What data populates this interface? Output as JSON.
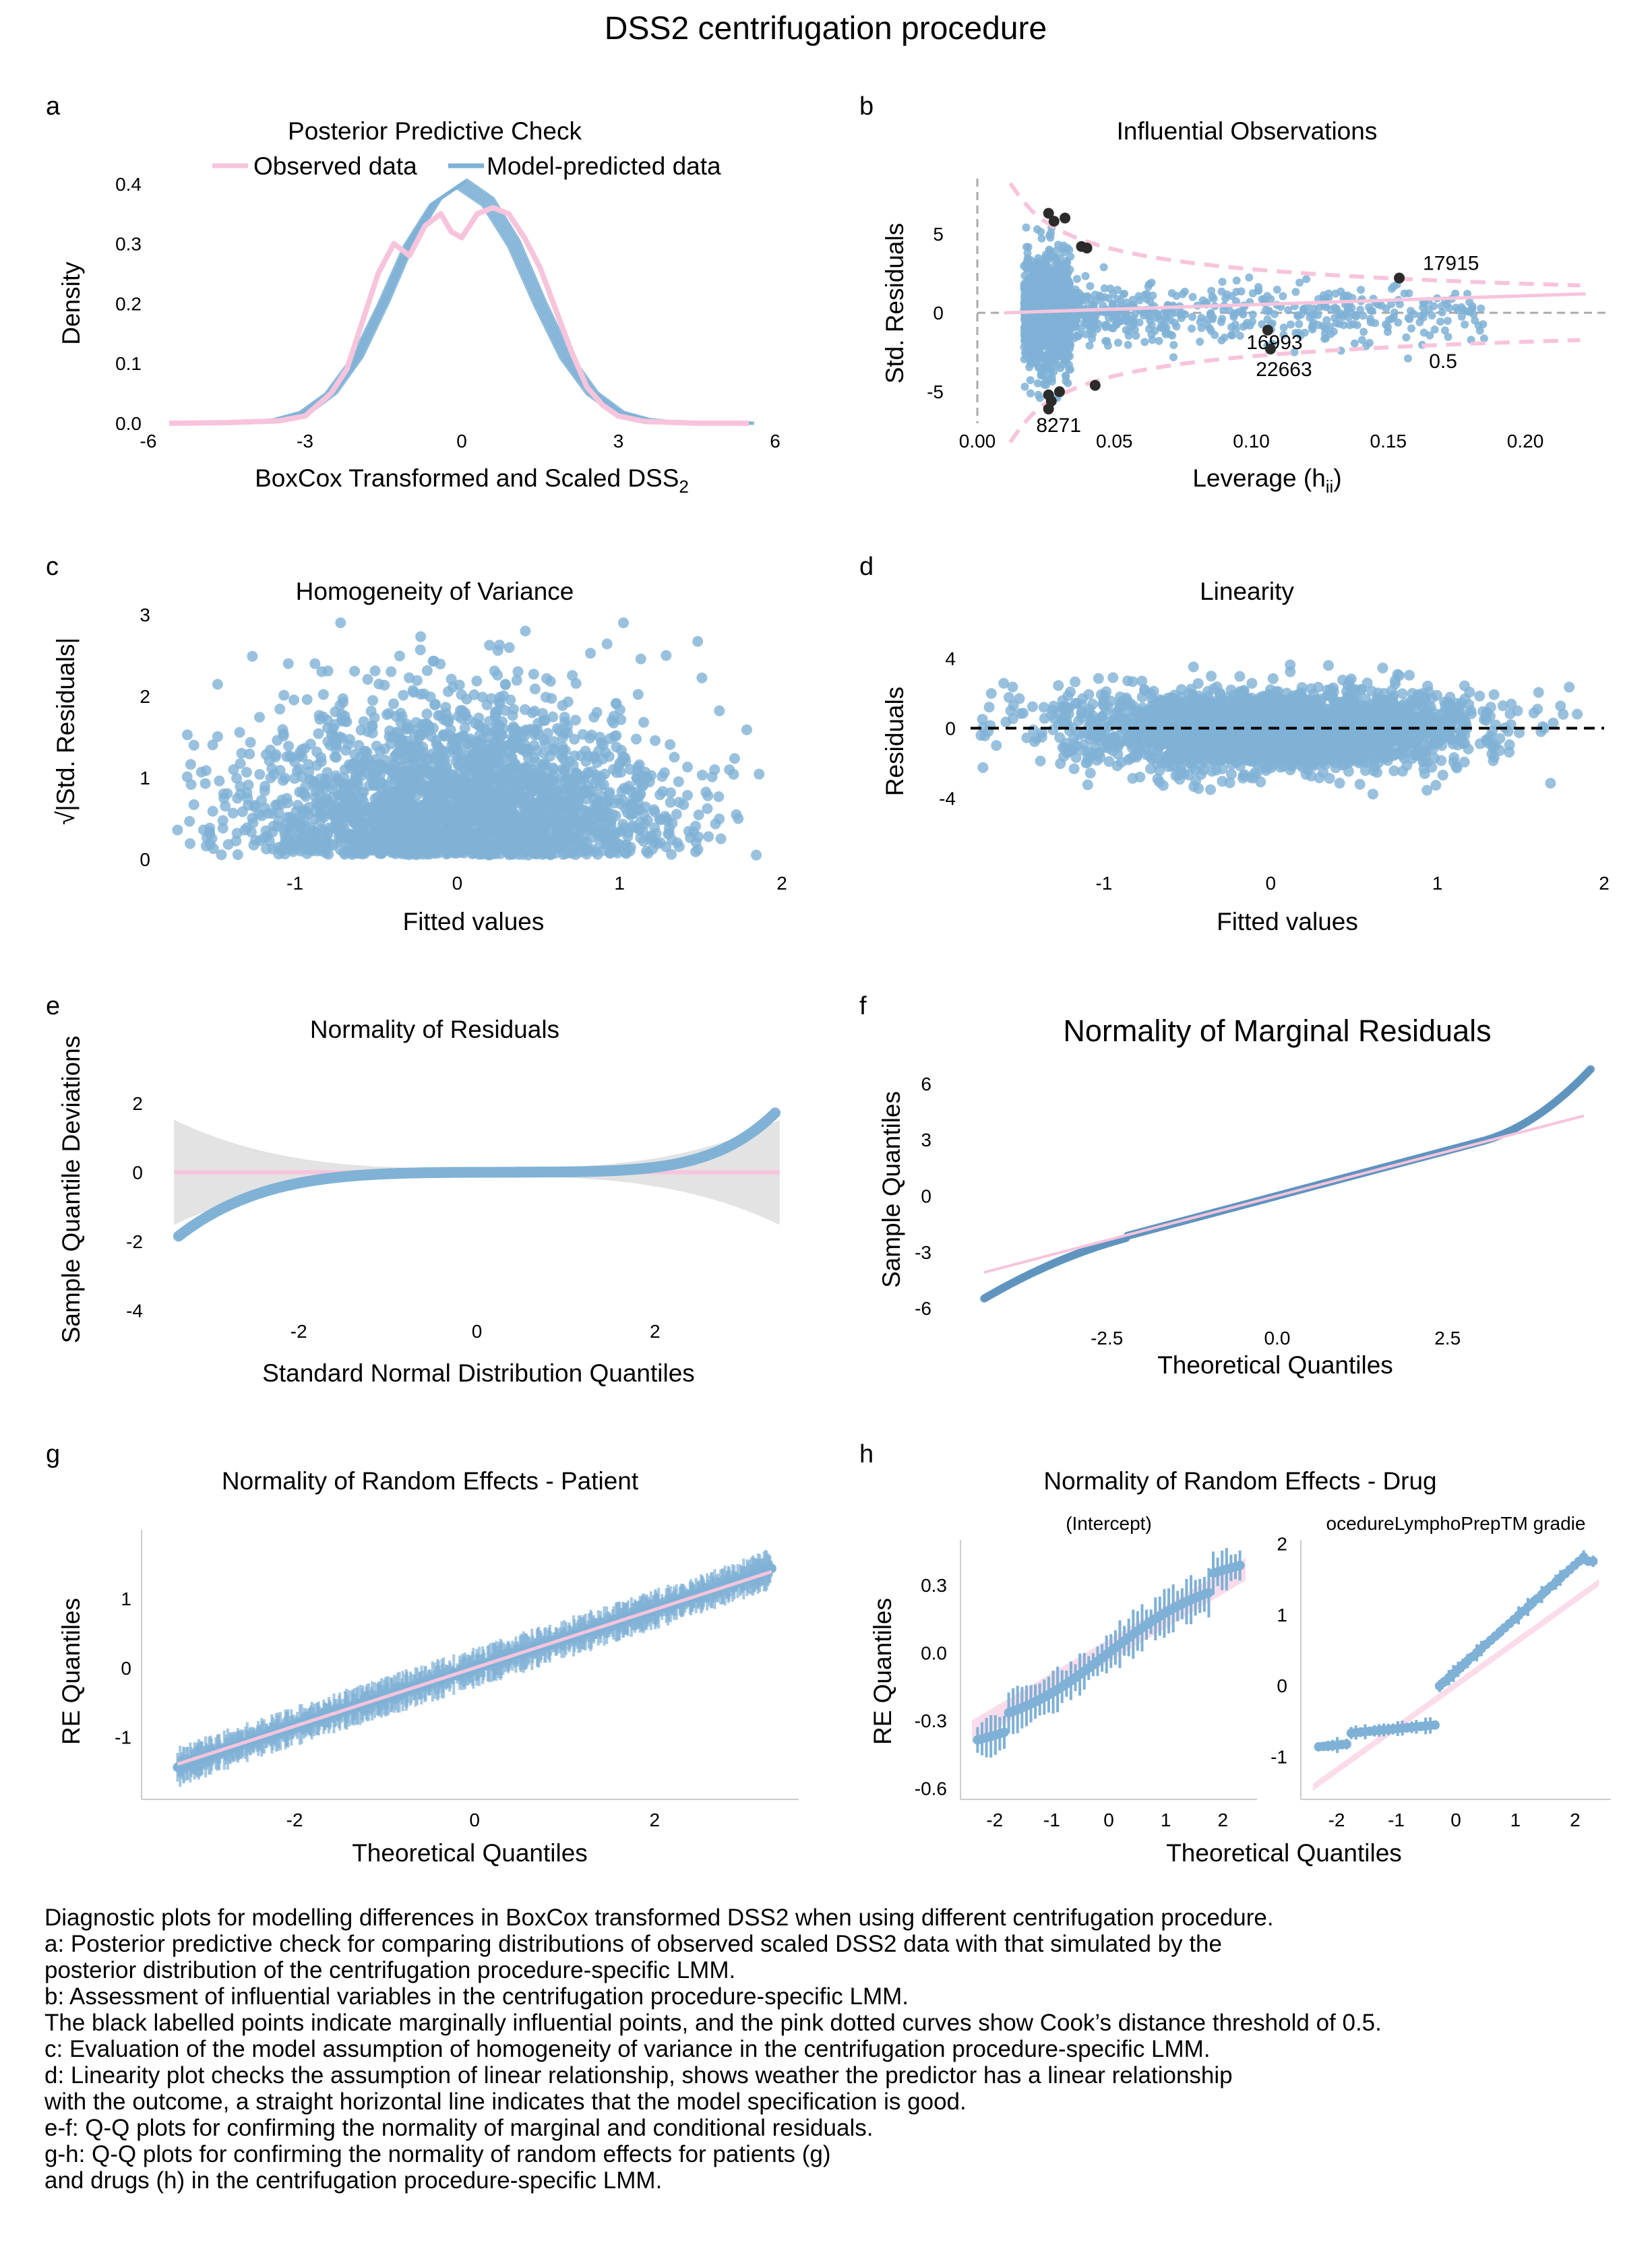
{
  "figure": {
    "title": "DSS2 centrifugation procedure"
  },
  "colors": {
    "blue": "#7fb1d6",
    "blue_dark": "#5f93bf",
    "pink": "#f7c4dc",
    "grey_band": "#e3e3e3",
    "influential": "#2b2b2b"
  },
  "chart_data": [
    {
      "panel": "a",
      "type": "line",
      "title": "Posterior Predictive Check",
      "xlabel": "BoxCox Transformed and Scaled DSS",
      "xlabel_sub": "2",
      "ylabel": "Density",
      "xlim": [
        -6,
        6
      ],
      "ylim": [
        0,
        0.42
      ],
      "xticks": [
        "-6",
        "-3",
        "0",
        "3",
        "6"
      ],
      "yticks": [
        "0.0",
        "0.1",
        "0.2",
        "0.3",
        "0.4"
      ],
      "legend": {
        "position": "top",
        "entries": [
          "Observed data",
          "Model-predicted data"
        ]
      },
      "series": [
        {
          "name": "Observed data",
          "x": [
            -5.6,
            -4.5,
            -3.5,
            -3.0,
            -2.5,
            -2.2,
            -1.9,
            -1.6,
            -1.3,
            -1.0,
            -0.7,
            -0.4,
            -0.2,
            0.0,
            0.3,
            0.6,
            0.9,
            1.2,
            1.5,
            1.8,
            2.1,
            2.4,
            2.7,
            3.0,
            3.5,
            4.5,
            5.5
          ],
          "y": [
            0.0,
            0.001,
            0.004,
            0.012,
            0.05,
            0.09,
            0.17,
            0.25,
            0.3,
            0.28,
            0.33,
            0.35,
            0.32,
            0.31,
            0.35,
            0.36,
            0.35,
            0.31,
            0.26,
            0.19,
            0.12,
            0.06,
            0.03,
            0.012,
            0.003,
            0.0,
            0.0
          ]
        },
        {
          "name": "Model-predicted data",
          "x": [
            -5.5,
            -4,
            -3.5,
            -3,
            -2.5,
            -2,
            -1.5,
            -1,
            -0.5,
            0,
            0.5,
            1,
            1.5,
            2,
            2.5,
            3,
            3.5,
            4,
            5.5
          ],
          "y": [
            0.0,
            0.002,
            0.006,
            0.018,
            0.05,
            0.11,
            0.2,
            0.3,
            0.37,
            0.4,
            0.37,
            0.3,
            0.2,
            0.11,
            0.05,
            0.018,
            0.006,
            0.002,
            0.0
          ]
        }
      ]
    },
    {
      "panel": "b",
      "type": "scatter",
      "title": "Influential Observations",
      "xlabel": "Leverage (h",
      "xlabel_sub": "ii",
      "xlabel_end": ")",
      "ylabel": "Std. Residuals",
      "xlim": [
        0,
        0.23
      ],
      "ylim": [
        -7,
        8.5
      ],
      "xticks": [
        "0.00",
        "0.05",
        "0.10",
        "0.15",
        "0.20"
      ],
      "yticks": [
        "-5",
        "0",
        "5"
      ],
      "cook_threshold_label": "0.5",
      "labeled_points": [
        {
          "label": "17915",
          "x": 0.154,
          "y": 2.2
        },
        {
          "label": "16993",
          "x": 0.106,
          "y": -1.1
        },
        {
          "label": "22663",
          "x": 0.107,
          "y": -2.3
        },
        {
          "label": "8271",
          "x": 0.026,
          "y": -5.2
        }
      ]
    },
    {
      "panel": "c",
      "type": "scatter",
      "title": "Homogeneity of Variance",
      "xlabel": "Fitted values",
      "ylabel": "|Std. Residuals|",
      "ylabel_prefix": "√",
      "xlim": [
        -1.8,
        2.0
      ],
      "ylim": [
        0,
        3
      ],
      "xticks": [
        "-1",
        "0",
        "1",
        "2"
      ],
      "yticks": [
        "0",
        "1",
        "2",
        "3"
      ]
    },
    {
      "panel": "d",
      "type": "scatter",
      "title": "Linearity",
      "xlabel": "Fitted values",
      "ylabel": "Residuals",
      "xlim": [
        -1.8,
        2.0
      ],
      "ylim": [
        -7.5,
        6.5
      ],
      "xticks": [
        "-1",
        "0",
        "1",
        "2"
      ],
      "yticks": [
        "-4",
        "0",
        "4"
      ]
    },
    {
      "panel": "e",
      "type": "scatter",
      "title": "Normality of Residuals",
      "xlabel": "Standard Normal Distribution Quantiles",
      "ylabel": "Sample Quantile Deviations",
      "xlim": [
        -3.5,
        3.5
      ],
      "ylim": [
        -4.2,
        3.5
      ],
      "xticks": [
        "-2",
        "0",
        "2"
      ],
      "yticks": [
        "-4",
        "-2",
        "0",
        "2"
      ]
    },
    {
      "panel": "f",
      "type": "scatter",
      "title": "Normality of Marginal Residuals",
      "xlabel": "Theoretical Quantiles",
      "ylabel": "Sample Quantiles",
      "xlim": [
        -4.5,
        4.6
      ],
      "ylim": [
        -6.5,
        7.0
      ],
      "xticks": [
        "-2.5",
        "0.0",
        "2.5"
      ],
      "yticks": [
        "-6",
        "-3",
        "0",
        "3",
        "6"
      ]
    },
    {
      "panel": "g",
      "type": "scatter",
      "title": "Normality of Random Effects - Patient",
      "xlabel": "Theoretical Quantiles",
      "ylabel": "RE Quantiles",
      "xlim": [
        -3.7,
        3.6
      ],
      "ylim": [
        -1.9,
        1.8
      ],
      "xticks": [
        "-2",
        "0",
        "2"
      ],
      "yticks": [
        "-1",
        "0",
        "1"
      ]
    },
    {
      "panel": "h",
      "type": "scatter",
      "title": "Normality of Random Effects - Drug",
      "xlabel": "Theoretical Quantiles",
      "ylabel": "RE Quantiles",
      "facets": [
        {
          "label": "(Intercept)",
          "xlim": [
            -2.6,
            2.6
          ],
          "ylim": [
            -0.65,
            0.5
          ],
          "xticks": [
            "-2",
            "-1",
            "0",
            "1",
            "2"
          ],
          "yticks": [
            "-0.6",
            "-0.3",
            "0.0",
            "0.3"
          ]
        },
        {
          "label": "ocedureLymphoPrepTM gradie",
          "xlim": [
            -2.6,
            2.6
          ],
          "ylim": [
            -1.6,
            2.05
          ],
          "xticks": [
            "-2",
            "-1",
            "0",
            "1",
            "2"
          ],
          "yticks": [
            "-1",
            "0",
            "1",
            "2"
          ]
        }
      ]
    }
  ],
  "panel_labels": [
    "a",
    "b",
    "c",
    "d",
    "e",
    "f",
    "g",
    "h"
  ],
  "caption": {
    "lines": [
      "Diagnostic plots for modelling differences in BoxCox transformed DSS2 when using different centrifugation procedure.",
      "a: Posterior predictive check for comparing distributions of observed scaled DSS2 data with that simulated by the",
      "posterior distribution of the centrifugation procedure-specific LMM.",
      "b: Assessment of influential variables in the centrifugation procedure-specific LMM.",
      "The black labelled points indicate marginally influential points, and the pink dotted curves show Cook’s distance threshold of 0.5.",
      "c: Evaluation of the model assumption of homogeneity of variance in the centrifugation procedure-specific LMM.",
      "d: Linearity plot checks the assumption of linear relationship, shows weather the predictor has a linear relationship",
      "with the outcome, a straight horizontal line indicates that the model specification is good.",
      "e-f: Q-Q plots for confirming the normality of marginal and conditional residuals.",
      "g-h: Q-Q plots for confirming the normality of random effects for patients (g)",
      "and drugs (h)  in the centrifugation procedure-specific LMM."
    ]
  }
}
